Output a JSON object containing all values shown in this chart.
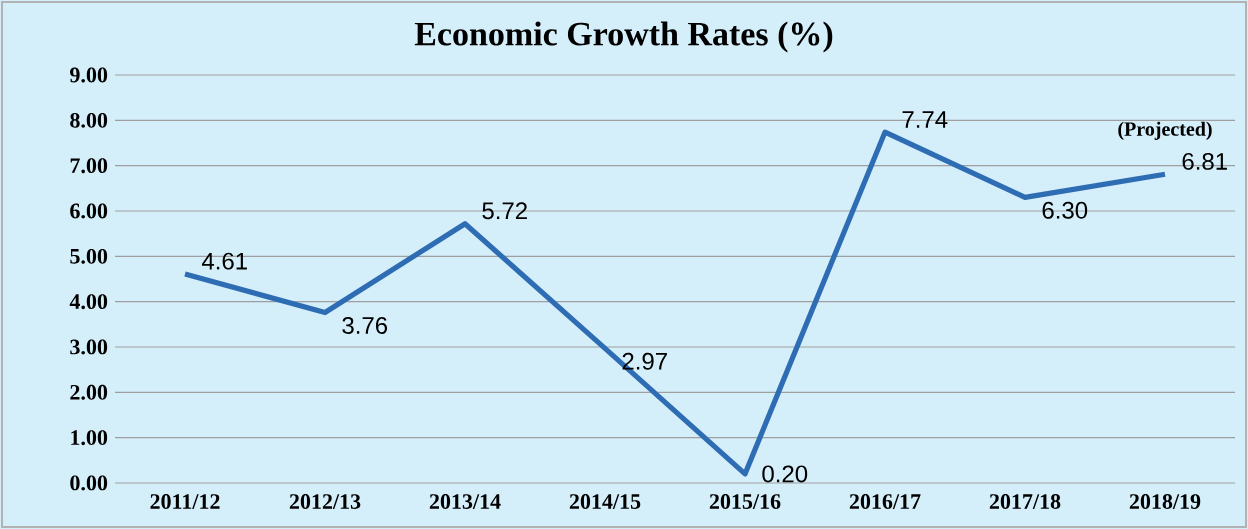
{
  "chart_data": {
    "type": "line",
    "title": "Economic Growth Rates (%)",
    "categories": [
      "2011/12",
      "2012/13",
      "2013/14",
      "2014/15",
      "2015/16",
      "2016/17",
      "2017/18",
      "2018/19"
    ],
    "series": [
      {
        "color": "#2e6db4",
        "values": [
          4.61,
          3.76,
          5.72,
          2.97,
          0.2,
          7.74,
          6.3,
          6.81
        ],
        "value_labels": [
          "4.61",
          "3.76",
          "5.72",
          "2.97",
          "0.20",
          "7.74",
          "6.30",
          "6.81"
        ]
      }
    ],
    "ylim": [
      0,
      9
    ],
    "yticks": [
      {
        "value": 0,
        "label": "0.00"
      },
      {
        "value": 1,
        "label": "1.00"
      },
      {
        "value": 2,
        "label": "2.00"
      },
      {
        "value": 3,
        "label": "3.00"
      },
      {
        "value": 4,
        "label": "4.00"
      },
      {
        "value": 5,
        "label": "5.00"
      },
      {
        "value": 6,
        "label": "6.00"
      },
      {
        "value": 7,
        "label": "7.00"
      },
      {
        "value": 8,
        "label": "8.00"
      },
      {
        "value": 9,
        "label": "9.00"
      }
    ],
    "grid": "y",
    "marker": "none",
    "line_style": "solid",
    "annotations": [
      {
        "text": "(Projected)",
        "x": "2018/19",
        "y": 6.81
      }
    ]
  }
}
